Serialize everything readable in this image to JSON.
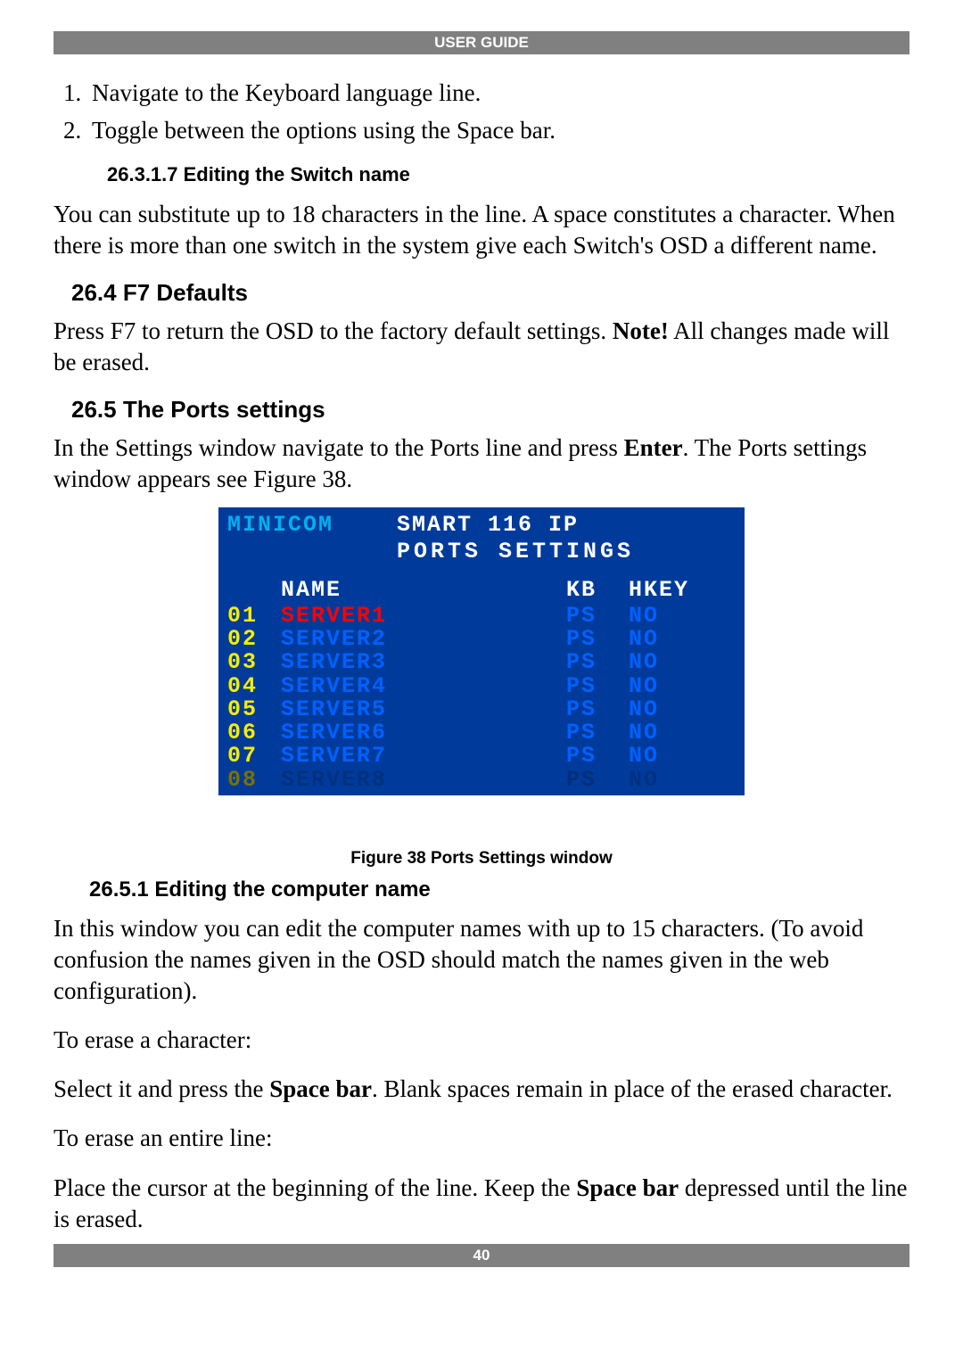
{
  "header": {
    "title": "USER GUIDE"
  },
  "list": {
    "item1": "Navigate to the Keyboard language line.",
    "item2": "Toggle between the options using the Space bar."
  },
  "s26_3_1_7": {
    "heading": "26.3.1.7 Editing the Switch name",
    "para": "You can substitute up to 18 characters in the line. A space constitutes a character. When there is more than one switch in the system give each Switch's OSD a different name."
  },
  "s26_4": {
    "heading": "26.4 F7 Defaults",
    "para_a": "Press F7 to return the OSD to the factory default settings. ",
    "note": "Note!",
    "para_b": " All changes made will be erased."
  },
  "s26_5": {
    "heading": "26.5 The Ports settings",
    "para_a": "In the Settings window navigate to the Ports line and press ",
    "enter": "Enter",
    "para_b": ". The Ports settings window appears see Figure 38."
  },
  "osd": {
    "brand": "MINICOM",
    "title": "SMART 116 IP",
    "subtitle": "PORTS SETTINGS",
    "cols": {
      "name": "NAME",
      "kb": "KB",
      "hkey": "HKEY"
    },
    "rows": [
      {
        "num": "01",
        "name": "SERVER1",
        "kb": "PS",
        "hkey": "NO",
        "selected": true
      },
      {
        "num": "02",
        "name": "SERVER2",
        "kb": "PS",
        "hkey": "NO",
        "selected": false
      },
      {
        "num": "03",
        "name": "SERVER3",
        "kb": "PS",
        "hkey": "NO",
        "selected": false
      },
      {
        "num": "04",
        "name": "SERVER4",
        "kb": "PS",
        "hkey": "NO",
        "selected": false
      },
      {
        "num": "05",
        "name": "SERVER5",
        "kb": "PS",
        "hkey": "NO",
        "selected": false
      },
      {
        "num": "06",
        "name": "SERVER6",
        "kb": "PS",
        "hkey": "NO",
        "selected": false
      },
      {
        "num": "07",
        "name": "SERVER7",
        "kb": "PS",
        "hkey": "NO",
        "selected": false
      },
      {
        "num": "08",
        "name": "SERVER8",
        "kb": "PS",
        "hkey": "NO",
        "selected": false
      }
    ]
  },
  "figure": {
    "caption": "Figure 38 Ports Settings window"
  },
  "s26_5_1": {
    "heading": "26.5.1 Editing the computer name",
    "para1": "In this window you can edit the computer names with up to 15 characters. (To avoid confusion the names given in the OSD should match the names given in the web configuration).",
    "para2": "To erase a character:",
    "para3a": "Select it and press the ",
    "space1": "Space bar",
    "para3b": ". Blank spaces remain in place of the erased character.",
    "para4": "To erase an entire line:",
    "para5a": "Place the cursor at the beginning of the line. Keep the ",
    "space2": "Space bar",
    "para5b": " depressed until the line is erased."
  },
  "footer": {
    "page": "40"
  }
}
